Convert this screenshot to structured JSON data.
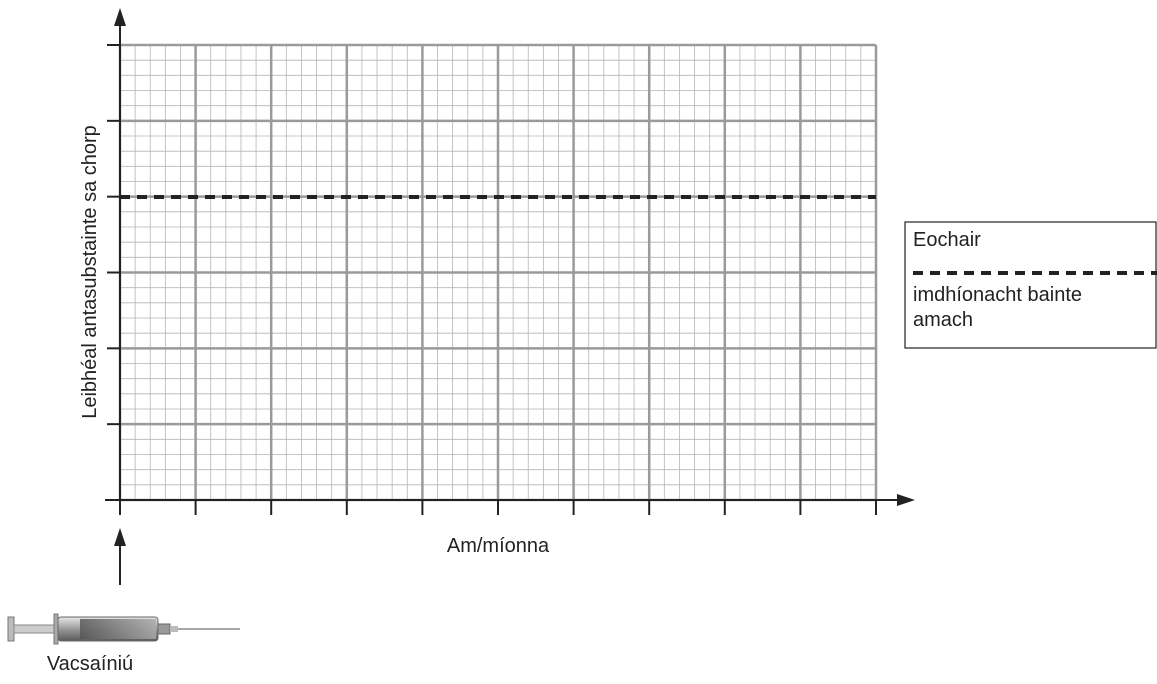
{
  "axes": {
    "y_label": "Leibhéal antasubstainte sa chorp",
    "x_label": "Am/míonna"
  },
  "key": {
    "title": "Eochair",
    "entry_lines": [
      "imdhíonacht bainte",
      "amach"
    ]
  },
  "vaccination_label": "Vacsaíniú"
}
